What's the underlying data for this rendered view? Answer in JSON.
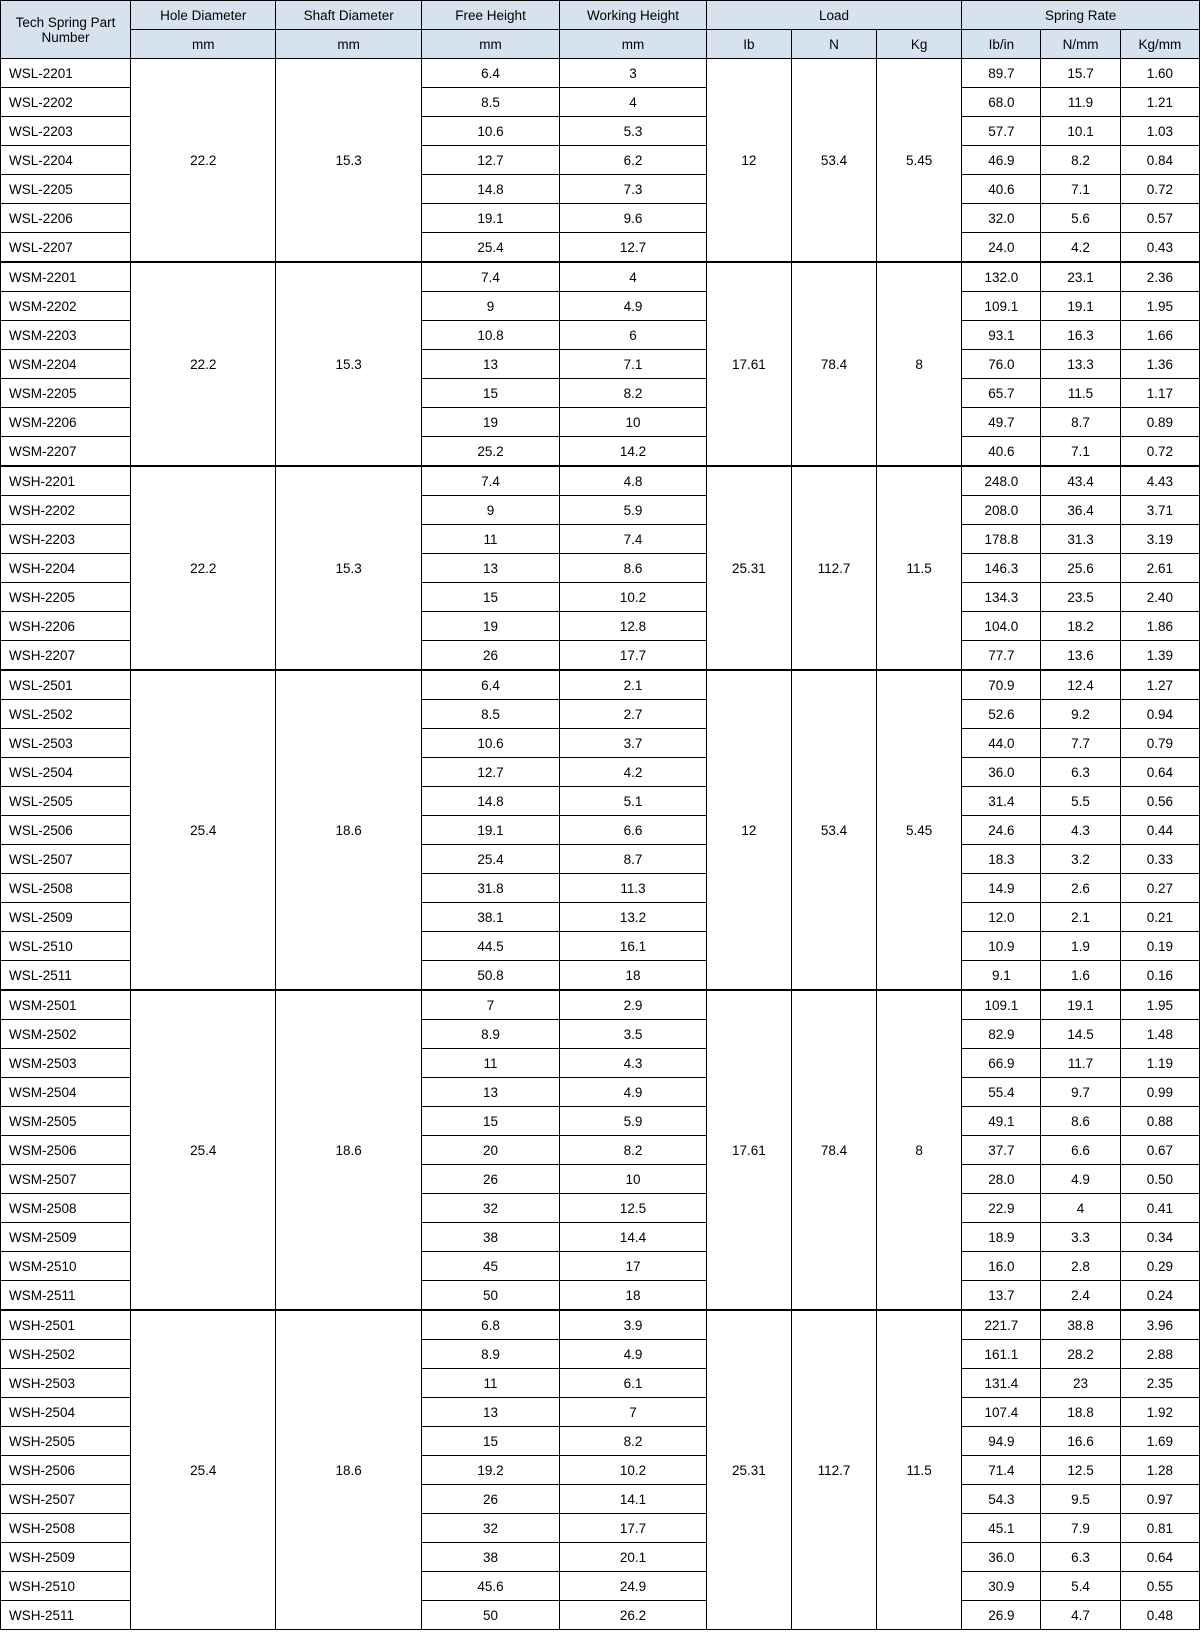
{
  "headers": {
    "part": "Tech Spring Part Number",
    "hole": "Hole Diameter",
    "shaft": "Shaft Diameter",
    "free": "Free Height",
    "work": "Working Height",
    "load": "Load",
    "rate": "Spring Rate",
    "mm": "mm",
    "lb": "Ib",
    "n": "N",
    "kg": "Kg",
    "lbin": "Ib/in",
    "nmm": "N/mm",
    "kgmm": "Kg/mm"
  },
  "groups": [
    {
      "hole": "22.2",
      "shaft": "15.3",
      "lb": "12",
      "n": "53.4",
      "kg": "5.45",
      "rows": [
        {
          "part": "WSL-2201",
          "free": "6.4",
          "work": "3",
          "lbin": "89.7",
          "nmm": "15.7",
          "kgmm": "1.60"
        },
        {
          "part": "WSL-2202",
          "free": "8.5",
          "work": "4",
          "lbin": "68.0",
          "nmm": "11.9",
          "kgmm": "1.21"
        },
        {
          "part": "WSL-2203",
          "free": "10.6",
          "work": "5.3",
          "lbin": "57.7",
          "nmm": "10.1",
          "kgmm": "1.03"
        },
        {
          "part": "WSL-2204",
          "free": "12.7",
          "work": "6.2",
          "lbin": "46.9",
          "nmm": "8.2",
          "kgmm": "0.84"
        },
        {
          "part": "WSL-2205",
          "free": "14.8",
          "work": "7.3",
          "lbin": "40.6",
          "nmm": "7.1",
          "kgmm": "0.72"
        },
        {
          "part": "WSL-2206",
          "free": "19.1",
          "work": "9.6",
          "lbin": "32.0",
          "nmm": "5.6",
          "kgmm": "0.57"
        },
        {
          "part": "WSL-2207",
          "free": "25.4",
          "work": "12.7",
          "lbin": "24.0",
          "nmm": "4.2",
          "kgmm": "0.43"
        }
      ]
    },
    {
      "hole": "22.2",
      "shaft": "15.3",
      "lb": "17.61",
      "n": "78.4",
      "kg": "8",
      "rows": [
        {
          "part": "WSM-2201",
          "free": "7.4",
          "work": "4",
          "lbin": "132.0",
          "nmm": "23.1",
          "kgmm": "2.36"
        },
        {
          "part": "WSM-2202",
          "free": "9",
          "work": "4.9",
          "lbin": "109.1",
          "nmm": "19.1",
          "kgmm": "1.95"
        },
        {
          "part": "WSM-2203",
          "free": "10.8",
          "work": "6",
          "lbin": "93.1",
          "nmm": "16.3",
          "kgmm": "1.66"
        },
        {
          "part": "WSM-2204",
          "free": "13",
          "work": "7.1",
          "lbin": "76.0",
          "nmm": "13.3",
          "kgmm": "1.36"
        },
        {
          "part": "WSM-2205",
          "free": "15",
          "work": "8.2",
          "lbin": "65.7",
          "nmm": "11.5",
          "kgmm": "1.17"
        },
        {
          "part": "WSM-2206",
          "free": "19",
          "work": "10",
          "lbin": "49.7",
          "nmm": "8.7",
          "kgmm": "0.89"
        },
        {
          "part": "WSM-2207",
          "free": "25.2",
          "work": "14.2",
          "lbin": "40.6",
          "nmm": "7.1",
          "kgmm": "0.72"
        }
      ]
    },
    {
      "hole": "22.2",
      "shaft": "15.3",
      "lb": "25.31",
      "n": "112.7",
      "kg": "11.5",
      "rows": [
        {
          "part": "WSH-2201",
          "free": "7.4",
          "work": "4.8",
          "lbin": "248.0",
          "nmm": "43.4",
          "kgmm": "4.43"
        },
        {
          "part": "WSH-2202",
          "free": "9",
          "work": "5.9",
          "lbin": "208.0",
          "nmm": "36.4",
          "kgmm": "3.71"
        },
        {
          "part": "WSH-2203",
          "free": "11",
          "work": "7.4",
          "lbin": "178.8",
          "nmm": "31.3",
          "kgmm": "3.19"
        },
        {
          "part": "WSH-2204",
          "free": "13",
          "work": "8.6",
          "lbin": "146.3",
          "nmm": "25.6",
          "kgmm": "2.61"
        },
        {
          "part": "WSH-2205",
          "free": "15",
          "work": "10.2",
          "lbin": "134.3",
          "nmm": "23.5",
          "kgmm": "2.40"
        },
        {
          "part": "WSH-2206",
          "free": "19",
          "work": "12.8",
          "lbin": "104.0",
          "nmm": "18.2",
          "kgmm": "1.86"
        },
        {
          "part": "WSH-2207",
          "free": "26",
          "work": "17.7",
          "lbin": "77.7",
          "nmm": "13.6",
          "kgmm": "1.39"
        }
      ]
    },
    {
      "hole": "25.4",
      "shaft": "18.6",
      "lb": "12",
      "n": "53.4",
      "kg": "5.45",
      "rows": [
        {
          "part": "WSL-2501",
          "free": "6.4",
          "work": "2.1",
          "lbin": "70.9",
          "nmm": "12.4",
          "kgmm": "1.27"
        },
        {
          "part": "WSL-2502",
          "free": "8.5",
          "work": "2.7",
          "lbin": "52.6",
          "nmm": "9.2",
          "kgmm": "0.94"
        },
        {
          "part": "WSL-2503",
          "free": "10.6",
          "work": "3.7",
          "lbin": "44.0",
          "nmm": "7.7",
          "kgmm": "0.79"
        },
        {
          "part": "WSL-2504",
          "free": "12.7",
          "work": "4.2",
          "lbin": "36.0",
          "nmm": "6.3",
          "kgmm": "0.64"
        },
        {
          "part": "WSL-2505",
          "free": "14.8",
          "work": "5.1",
          "lbin": "31.4",
          "nmm": "5.5",
          "kgmm": "0.56"
        },
        {
          "part": "WSL-2506",
          "free": "19.1",
          "work": "6.6",
          "lbin": "24.6",
          "nmm": "4.3",
          "kgmm": "0.44"
        },
        {
          "part": "WSL-2507",
          "free": "25.4",
          "work": "8.7",
          "lbin": "18.3",
          "nmm": "3.2",
          "kgmm": "0.33"
        },
        {
          "part": "WSL-2508",
          "free": "31.8",
          "work": "11.3",
          "lbin": "14.9",
          "nmm": "2.6",
          "kgmm": "0.27"
        },
        {
          "part": "WSL-2509",
          "free": "38.1",
          "work": "13.2",
          "lbin": "12.0",
          "nmm": "2.1",
          "kgmm": "0.21"
        },
        {
          "part": "WSL-2510",
          "free": "44.5",
          "work": "16.1",
          "lbin": "10.9",
          "nmm": "1.9",
          "kgmm": "0.19"
        },
        {
          "part": "WSL-2511",
          "free": "50.8",
          "work": "18",
          "lbin": "9.1",
          "nmm": "1.6",
          "kgmm": "0.16"
        }
      ]
    },
    {
      "hole": "25.4",
      "shaft": "18.6",
      "lb": "17.61",
      "n": "78.4",
      "kg": "8",
      "rows": [
        {
          "part": "WSM-2501",
          "free": "7",
          "work": "2.9",
          "lbin": "109.1",
          "nmm": "19.1",
          "kgmm": "1.95"
        },
        {
          "part": "WSM-2502",
          "free": "8.9",
          "work": "3.5",
          "lbin": "82.9",
          "nmm": "14.5",
          "kgmm": "1.48"
        },
        {
          "part": "WSM-2503",
          "free": "11",
          "work": "4.3",
          "lbin": "66.9",
          "nmm": "11.7",
          "kgmm": "1.19"
        },
        {
          "part": "WSM-2504",
          "free": "13",
          "work": "4.9",
          "lbin": "55.4",
          "nmm": "9.7",
          "kgmm": "0.99"
        },
        {
          "part": "WSM-2505",
          "free": "15",
          "work": "5.9",
          "lbin": "49.1",
          "nmm": "8.6",
          "kgmm": "0.88"
        },
        {
          "part": "WSM-2506",
          "free": "20",
          "work": "8.2",
          "lbin": "37.7",
          "nmm": "6.6",
          "kgmm": "0.67"
        },
        {
          "part": "WSM-2507",
          "free": "26",
          "work": "10",
          "lbin": "28.0",
          "nmm": "4.9",
          "kgmm": "0.50"
        },
        {
          "part": "WSM-2508",
          "free": "32",
          "work": "12.5",
          "lbin": "22.9",
          "nmm": "4",
          "kgmm": "0.41"
        },
        {
          "part": "WSM-2509",
          "free": "38",
          "work": "14.4",
          "lbin": "18.9",
          "nmm": "3.3",
          "kgmm": "0.34"
        },
        {
          "part": "WSM-2510",
          "free": "45",
          "work": "17",
          "lbin": "16.0",
          "nmm": "2.8",
          "kgmm": "0.29"
        },
        {
          "part": "WSM-2511",
          "free": "50",
          "work": "18",
          "lbin": "13.7",
          "nmm": "2.4",
          "kgmm": "0.24"
        }
      ]
    },
    {
      "hole": "25.4",
      "shaft": "18.6",
      "lb": "25.31",
      "n": "112.7",
      "kg": "11.5",
      "rows": [
        {
          "part": "WSH-2501",
          "free": "6.8",
          "work": "3.9",
          "lbin": "221.7",
          "nmm": "38.8",
          "kgmm": "3.96"
        },
        {
          "part": "WSH-2502",
          "free": "8.9",
          "work": "4.9",
          "lbin": "161.1",
          "nmm": "28.2",
          "kgmm": "2.88"
        },
        {
          "part": "WSH-2503",
          "free": "11",
          "work": "6.1",
          "lbin": "131.4",
          "nmm": "23",
          "kgmm": "2.35"
        },
        {
          "part": "WSH-2504",
          "free": "13",
          "work": "7",
          "lbin": "107.4",
          "nmm": "18.8",
          "kgmm": "1.92"
        },
        {
          "part": "WSH-2505",
          "free": "15",
          "work": "8.2",
          "lbin": "94.9",
          "nmm": "16.6",
          "kgmm": "1.69"
        },
        {
          "part": "WSH-2506",
          "free": "19.2",
          "work": "10.2",
          "lbin": "71.4",
          "nmm": "12.5",
          "kgmm": "1.28"
        },
        {
          "part": "WSH-2507",
          "free": "26",
          "work": "14.1",
          "lbin": "54.3",
          "nmm": "9.5",
          "kgmm": "0.97"
        },
        {
          "part": "WSH-2508",
          "free": "32",
          "work": "17.7",
          "lbin": "45.1",
          "nmm": "7.9",
          "kgmm": "0.81"
        },
        {
          "part": "WSH-2509",
          "free": "38",
          "work": "20.1",
          "lbin": "36.0",
          "nmm": "6.3",
          "kgmm": "0.64"
        },
        {
          "part": "WSH-2510",
          "free": "45.6",
          "work": "24.9",
          "lbin": "30.9",
          "nmm": "5.4",
          "kgmm": "0.55"
        },
        {
          "part": "WSH-2511",
          "free": "50",
          "work": "26.2",
          "lbin": "26.9",
          "nmm": "4.7",
          "kgmm": "0.48"
        }
      ]
    }
  ]
}
